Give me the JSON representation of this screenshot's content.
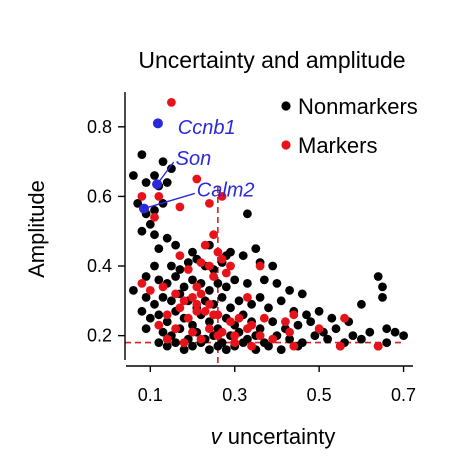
{
  "colors": {
    "nonmarker": "#000000",
    "marker": "#e8131a",
    "highlight": "#2a2adb",
    "axis": "#000000",
    "refline": "#d42020"
  },
  "chart_data": {
    "type": "scatter",
    "title": "Uncertainty and amplitude",
    "xlabel_var": "v",
    "xlabel_rest": " uncertainty",
    "ylabel": "Amplitude",
    "xlim": [
      0.04,
      0.72
    ],
    "ylim": [
      0.13,
      0.9
    ],
    "xticks": [
      0.1,
      0.3,
      0.5,
      0.7
    ],
    "xtick_labels": [
      "0.1",
      "0.3",
      "0.5",
      "0.7"
    ],
    "yticks": [
      0.2,
      0.4,
      0.6,
      0.8
    ],
    "ytick_labels": [
      "0.2",
      "0.4",
      "0.6",
      "0.8"
    ],
    "grid": false,
    "legend_position": "top-right",
    "reference_lines": {
      "x": 0.26,
      "y": 0.18
    },
    "series": [
      {
        "name": "Nonmarkers",
        "points": [
          [
            0.08,
            0.72
          ],
          [
            0.11,
            0.66
          ],
          [
            0.06,
            0.66
          ],
          [
            0.13,
            0.7
          ],
          [
            0.15,
            0.68
          ],
          [
            0.09,
            0.64
          ],
          [
            0.12,
            0.63
          ],
          [
            0.14,
            0.64
          ],
          [
            0.07,
            0.58
          ],
          [
            0.09,
            0.55
          ],
          [
            0.11,
            0.56
          ],
          [
            0.13,
            0.58
          ],
          [
            0.1,
            0.52
          ],
          [
            0.08,
            0.5
          ],
          [
            0.11,
            0.49
          ],
          [
            0.14,
            0.48
          ],
          [
            0.12,
            0.45
          ],
          [
            0.16,
            0.46
          ],
          [
            0.2,
            0.44
          ],
          [
            0.24,
            0.46
          ],
          [
            0.28,
            0.43
          ],
          [
            0.33,
            0.55
          ],
          [
            0.35,
            0.45
          ],
          [
            0.11,
            0.4
          ],
          [
            0.15,
            0.4
          ],
          [
            0.17,
            0.39
          ],
          [
            0.19,
            0.41
          ],
          [
            0.21,
            0.42
          ],
          [
            0.23,
            0.4
          ],
          [
            0.25,
            0.39
          ],
          [
            0.27,
            0.41
          ],
          [
            0.29,
            0.44
          ],
          [
            0.32,
            0.43
          ],
          [
            0.36,
            0.41
          ],
          [
            0.39,
            0.4
          ],
          [
            0.09,
            0.37
          ],
          [
            0.12,
            0.36
          ],
          [
            0.14,
            0.35
          ],
          [
            0.16,
            0.37
          ],
          [
            0.18,
            0.34
          ],
          [
            0.2,
            0.36
          ],
          [
            0.22,
            0.35
          ],
          [
            0.24,
            0.33
          ],
          [
            0.26,
            0.35
          ],
          [
            0.28,
            0.34
          ],
          [
            0.3,
            0.36
          ],
          [
            0.33,
            0.35
          ],
          [
            0.37,
            0.36
          ],
          [
            0.4,
            0.35
          ],
          [
            0.43,
            0.33
          ],
          [
            0.46,
            0.32
          ],
          [
            0.64,
            0.37
          ],
          [
            0.06,
            0.33
          ],
          [
            0.09,
            0.31
          ],
          [
            0.11,
            0.29
          ],
          [
            0.13,
            0.31
          ],
          [
            0.15,
            0.3
          ],
          [
            0.17,
            0.32
          ],
          [
            0.19,
            0.3
          ],
          [
            0.21,
            0.28
          ],
          [
            0.23,
            0.3
          ],
          [
            0.25,
            0.29
          ],
          [
            0.27,
            0.31
          ],
          [
            0.29,
            0.28
          ],
          [
            0.31,
            0.3
          ],
          [
            0.34,
            0.29
          ],
          [
            0.36,
            0.31
          ],
          [
            0.38,
            0.28
          ],
          [
            0.41,
            0.3
          ],
          [
            0.44,
            0.27
          ],
          [
            0.47,
            0.26
          ],
          [
            0.5,
            0.27
          ],
          [
            0.53,
            0.25
          ],
          [
            0.57,
            0.24
          ],
          [
            0.6,
            0.29
          ],
          [
            0.65,
            0.34
          ],
          [
            0.65,
            0.31
          ],
          [
            0.08,
            0.27
          ],
          [
            0.1,
            0.25
          ],
          [
            0.12,
            0.26
          ],
          [
            0.14,
            0.24
          ],
          [
            0.16,
            0.27
          ],
          [
            0.18,
            0.25
          ],
          [
            0.2,
            0.23
          ],
          [
            0.22,
            0.26
          ],
          [
            0.24,
            0.24
          ],
          [
            0.26,
            0.22
          ],
          [
            0.28,
            0.25
          ],
          [
            0.3,
            0.23
          ],
          [
            0.32,
            0.26
          ],
          [
            0.34,
            0.24
          ],
          [
            0.36,
            0.22
          ],
          [
            0.39,
            0.24
          ],
          [
            0.42,
            0.22
          ],
          [
            0.45,
            0.23
          ],
          [
            0.48,
            0.24
          ],
          [
            0.51,
            0.21
          ],
          [
            0.54,
            0.22
          ],
          [
            0.58,
            0.2
          ],
          [
            0.62,
            0.21
          ],
          [
            0.66,
            0.22
          ],
          [
            0.68,
            0.21
          ],
          [
            0.7,
            0.2
          ],
          [
            0.09,
            0.22
          ],
          [
            0.13,
            0.21
          ],
          [
            0.15,
            0.2
          ],
          [
            0.17,
            0.22
          ],
          [
            0.19,
            0.19
          ],
          [
            0.21,
            0.21
          ],
          [
            0.23,
            0.19
          ],
          [
            0.25,
            0.2
          ],
          [
            0.27,
            0.18
          ],
          [
            0.29,
            0.2
          ],
          [
            0.31,
            0.21
          ],
          [
            0.33,
            0.19
          ],
          [
            0.35,
            0.2
          ],
          [
            0.37,
            0.18
          ],
          [
            0.4,
            0.2
          ],
          [
            0.43,
            0.19
          ],
          [
            0.46,
            0.18
          ],
          [
            0.49,
            0.2
          ],
          [
            0.52,
            0.19
          ],
          [
            0.56,
            0.18
          ],
          [
            0.6,
            0.19
          ],
          [
            0.12,
            0.18
          ],
          [
            0.14,
            0.17
          ],
          [
            0.16,
            0.18
          ],
          [
            0.18,
            0.16
          ],
          [
            0.2,
            0.17
          ],
          [
            0.22,
            0.18
          ],
          [
            0.24,
            0.16
          ],
          [
            0.26,
            0.17
          ],
          [
            0.28,
            0.16
          ],
          [
            0.3,
            0.17
          ],
          [
            0.32,
            0.18
          ],
          [
            0.35,
            0.16
          ],
          [
            0.38,
            0.17
          ],
          [
            0.41,
            0.16
          ],
          [
            0.45,
            0.17
          ],
          [
            0.55,
            0.17
          ],
          [
            0.64,
            0.17
          ],
          [
            0.66,
            0.18
          ]
        ]
      },
      {
        "name": "Markers",
        "points": [
          [
            0.15,
            0.87
          ],
          [
            0.08,
            0.6
          ],
          [
            0.12,
            0.6
          ],
          [
            0.21,
            0.65
          ],
          [
            0.24,
            0.58
          ],
          [
            0.11,
            0.54
          ],
          [
            0.17,
            0.57
          ],
          [
            0.27,
            0.6
          ],
          [
            0.25,
            0.49
          ],
          [
            0.23,
            0.46
          ],
          [
            0.26,
            0.44
          ],
          [
            0.17,
            0.43
          ],
          [
            0.19,
            0.39
          ],
          [
            0.22,
            0.41
          ],
          [
            0.27,
            0.42
          ],
          [
            0.29,
            0.4
          ],
          [
            0.28,
            0.38
          ],
          [
            0.24,
            0.4
          ],
          [
            0.36,
            0.4
          ],
          [
            0.21,
            0.34
          ],
          [
            0.25,
            0.37
          ],
          [
            0.08,
            0.35
          ],
          [
            0.1,
            0.33
          ],
          [
            0.13,
            0.34
          ],
          [
            0.16,
            0.32
          ],
          [
            0.18,
            0.3
          ],
          [
            0.2,
            0.31
          ],
          [
            0.22,
            0.32
          ],
          [
            0.24,
            0.29
          ],
          [
            0.17,
            0.28
          ],
          [
            0.21,
            0.27
          ],
          [
            0.33,
            0.31
          ],
          [
            0.14,
            0.26
          ],
          [
            0.19,
            0.25
          ],
          [
            0.23,
            0.27
          ],
          [
            0.26,
            0.26
          ],
          [
            0.29,
            0.24
          ],
          [
            0.31,
            0.25
          ],
          [
            0.34,
            0.23
          ],
          [
            0.37,
            0.25
          ],
          [
            0.42,
            0.24
          ],
          [
            0.44,
            0.26
          ],
          [
            0.5,
            0.22
          ],
          [
            0.56,
            0.25
          ],
          [
            0.12,
            0.23
          ],
          [
            0.16,
            0.22
          ],
          [
            0.2,
            0.21
          ],
          [
            0.24,
            0.22
          ],
          [
            0.27,
            0.21
          ],
          [
            0.3,
            0.2
          ],
          [
            0.33,
            0.22
          ],
          [
            0.36,
            0.2
          ],
          [
            0.39,
            0.19
          ],
          [
            0.43,
            0.21
          ],
          [
            0.14,
            0.19
          ],
          [
            0.18,
            0.18
          ],
          [
            0.22,
            0.19
          ],
          [
            0.26,
            0.2
          ],
          [
            0.3,
            0.18
          ],
          [
            0.34,
            0.17
          ],
          [
            0.44,
            0.17
          ],
          [
            0.55,
            0.17
          ],
          [
            0.64,
            0.17
          ],
          [
            0.25,
            0.26
          ],
          [
            0.21,
            0.29
          ]
        ]
      }
    ],
    "annotations": [
      {
        "label": "Ccnb1",
        "x": 0.118,
        "y": 0.81,
        "text_x": 0.165,
        "text_y": 0.8,
        "line": false
      },
      {
        "label": "Son",
        "x": 0.116,
        "y": 0.635,
        "text_x": 0.16,
        "text_y": 0.71,
        "line": true
      },
      {
        "label": "Calm2",
        "x": 0.085,
        "y": 0.565,
        "text_x": 0.21,
        "text_y": 0.62,
        "line": true
      }
    ]
  }
}
